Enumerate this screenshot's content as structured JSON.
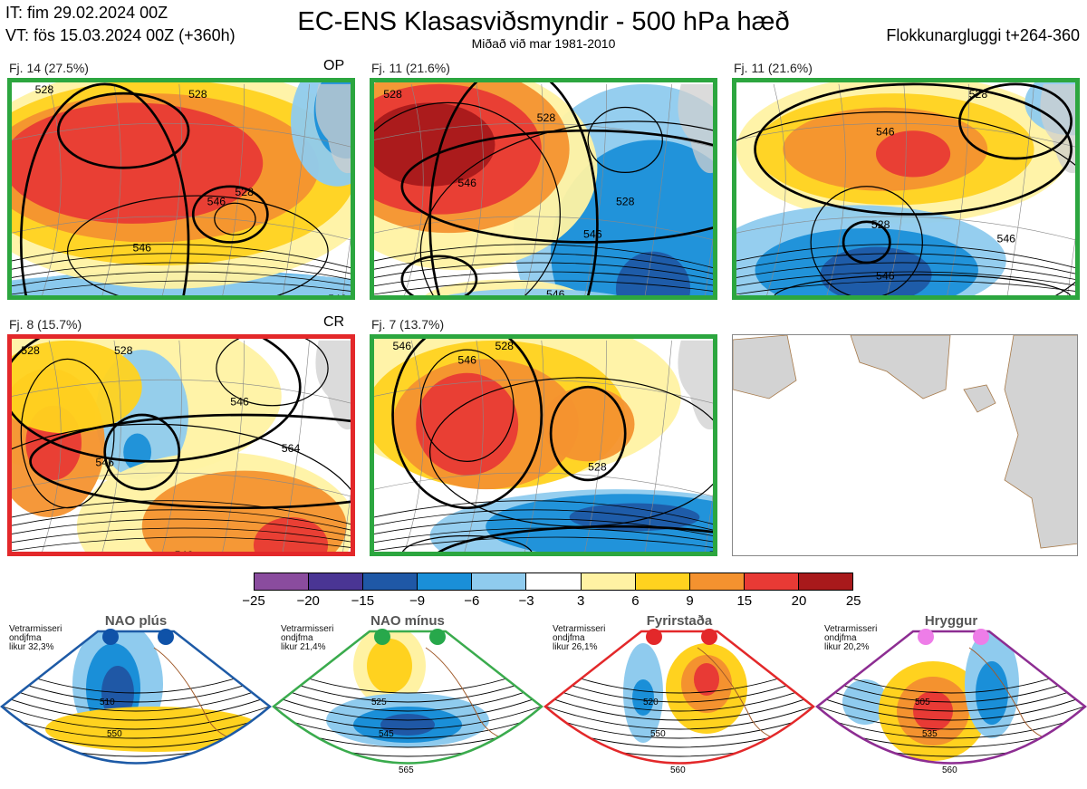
{
  "header": {
    "it": "IT: fim 29.02.2024 00Z",
    "vt": "VT: fös 15.03.2024 00Z  (+360h)",
    "title": "EC-ENS Klasasviðsmyndir - 500 hPa hæð",
    "subtitle": "Miðað við mar 1981-2010",
    "window": "Flokkunargluggi t+264-360"
  },
  "panels": [
    {
      "label": "Fj. 14 (27.5%)",
      "tag": "OP",
      "border": "green",
      "contours": [
        "528",
        "528",
        "546",
        "528",
        "546",
        "546"
      ]
    },
    {
      "label": "Fj. 11 (21.6%)",
      "tag": "",
      "border": "green",
      "contours": [
        "528",
        "528",
        "546",
        "528",
        "546",
        "546",
        "516"
      ]
    },
    {
      "label": "Fj. 11 (21.6%)",
      "tag": "",
      "border": "green",
      "contours": [
        "528",
        "546",
        "528",
        "546",
        "546",
        "564",
        "528"
      ]
    },
    {
      "label": "Fj. 8 (15.7%)",
      "tag": "CR",
      "border": "red",
      "contours": [
        "528",
        "528",
        "546",
        "546",
        "564",
        "546",
        "546"
      ]
    },
    {
      "label": "Fj. 7 (13.7%)",
      "tag": "",
      "border": "green",
      "contours": [
        "546",
        "528",
        "528",
        "546",
        "546"
      ]
    },
    {
      "label": "",
      "tag": "",
      "border": "none",
      "contours": []
    }
  ],
  "colorbar": {
    "ticks": [
      "−25",
      "−20",
      "−15",
      "−9",
      "−6",
      "−3",
      "3",
      "6",
      "9",
      "15",
      "20",
      "25"
    ],
    "colors": [
      "#8a4c9e",
      "#4a3594",
      "#1f58a6",
      "#1a8fd8",
      "#8fcbee",
      "#ffffff",
      "#fff2a3",
      "#ffd21f",
      "#f4922f",
      "#e83a35",
      "#a8191b"
    ]
  },
  "regimes": [
    {
      "name": "NAO plús",
      "text": "Vetrarmisseri\nondjfma\nlikur 32,3%",
      "dot": "#0f52a8",
      "frame": "#1d5aa6",
      "labels": [
        "510",
        "550"
      ]
    },
    {
      "name": "NAO mínus",
      "text": "Vetrarmisseri\nondjfma\nlikur 21,4%",
      "dot": "#27a84b",
      "frame": "#3aab4d",
      "labels": [
        "525",
        "545",
        "565"
      ]
    },
    {
      "name": "Fyrirstaða",
      "text": "Vetrarmisseri\nondjfma\nlikur 26,1%",
      "dot": "#e3282a",
      "frame": "#e3282a",
      "labels": [
        "520",
        "550",
        "560"
      ]
    },
    {
      "name": "Hryggur",
      "text": "Vetrarmisseri\nondjfma\nlikur 20,2%",
      "dot": "#ee7de8",
      "frame": "#8d2d92",
      "labels": [
        "505",
        "535",
        "560"
      ]
    }
  ]
}
